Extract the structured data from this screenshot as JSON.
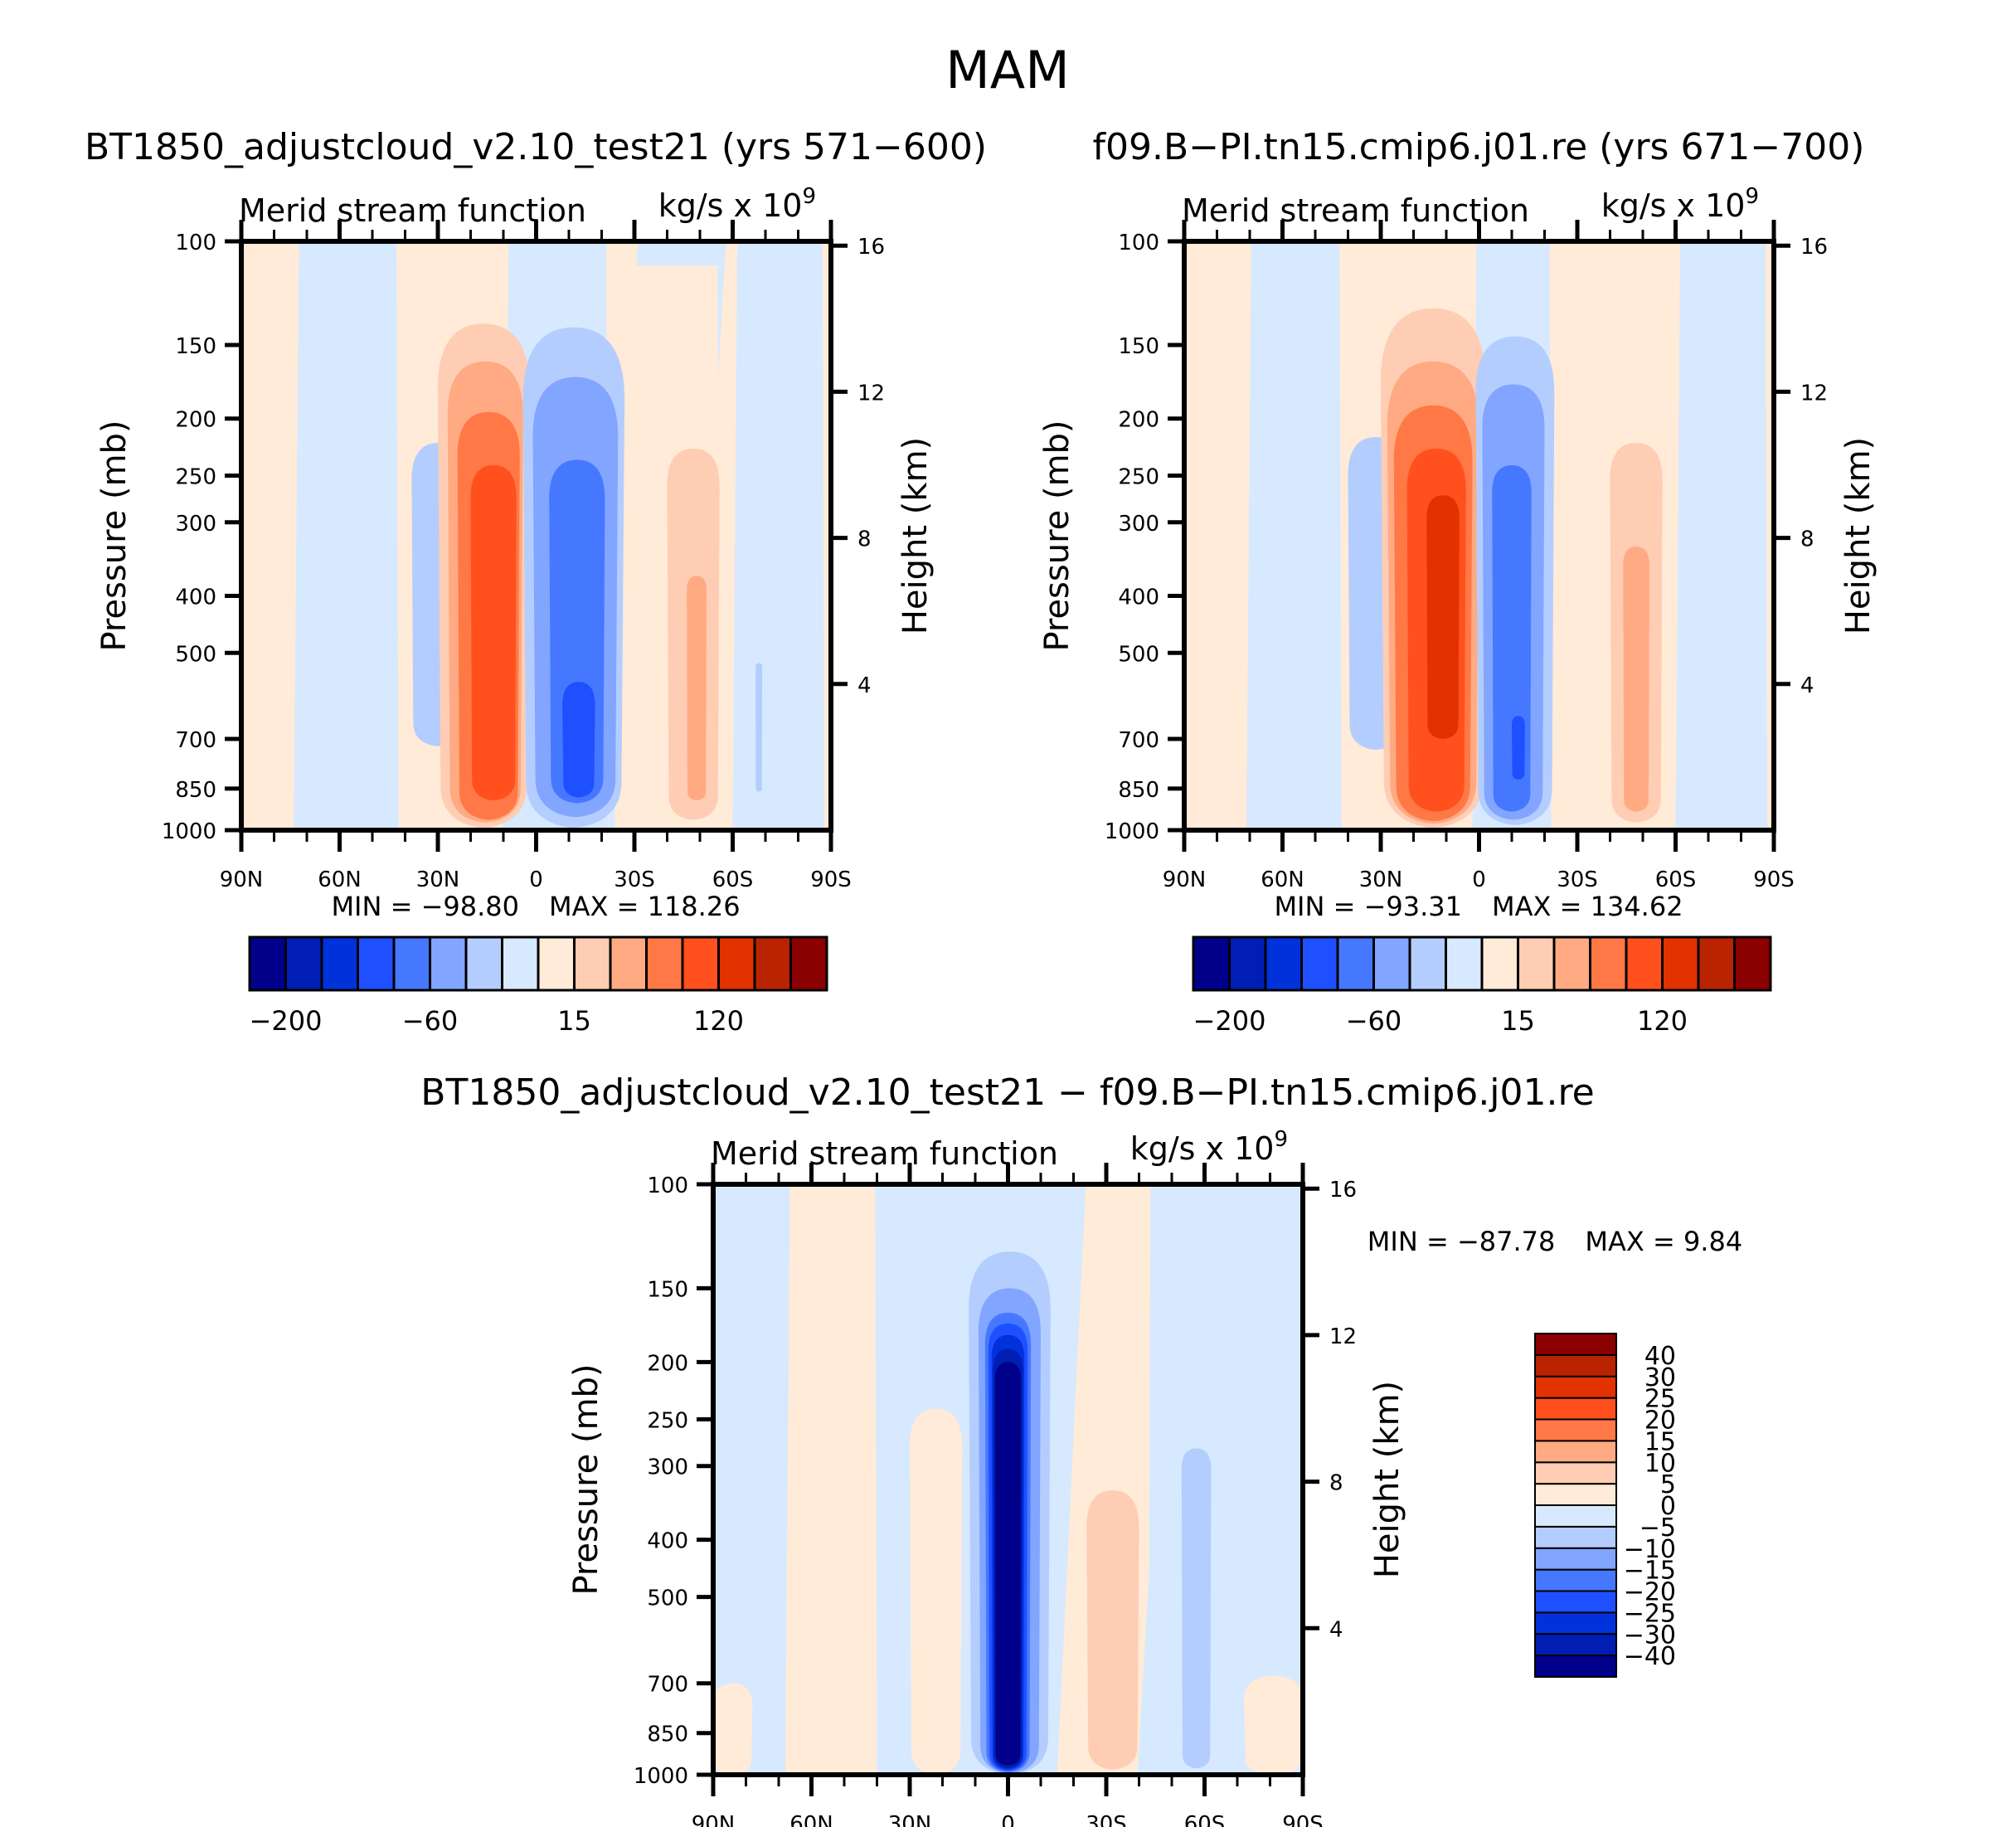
{
  "figure": {
    "title": "MAM"
  },
  "palette": [
    "#00008b",
    "#001eb4",
    "#0032dc",
    "#1e50ff",
    "#4678ff",
    "#82a5ff",
    "#b4cdff",
    "#d7e9ff",
    "#ffebd7",
    "#ffcdb4",
    "#ffaa82",
    "#ff7846",
    "#ff501e",
    "#e13200",
    "#b92300",
    "#8b0000"
  ],
  "chart_data": [
    {
      "id": "case",
      "type": "heatmap",
      "title": "BT1850_adjustcloud_v2.10_test21 (yrs 571−600)",
      "left_string": "Merid stream function",
      "right_string": "kg/s x 10",
      "right_string_exp": "9",
      "xlabel": "",
      "ylabel": "Pressure (mb)",
      "ylabel_right": "Height (km)",
      "x_ticks": [
        {
          "v": 90,
          "label": "90N"
        },
        {
          "v": 60,
          "label": "60N"
        },
        {
          "v": 30,
          "label": "30N"
        },
        {
          "v": 0,
          "label": "0"
        },
        {
          "v": -30,
          "label": "30S"
        },
        {
          "v": -60,
          "label": "60S"
        },
        {
          "v": -90,
          "label": "90S"
        }
      ],
      "xlim": [
        90,
        -90
      ],
      "y_ticks": [
        100,
        150,
        200,
        250,
        300,
        400,
        500,
        700,
        850,
        1000
      ],
      "ylim": [
        100,
        1000
      ],
      "yscale": "log",
      "y_right_ticks": [
        16,
        12,
        8,
        4
      ],
      "min_label": "MIN = −98.80",
      "max_label": "MAX = 118.26",
      "min": -98.8,
      "max": 118.26,
      "colorbar": {
        "orientation": "horizontal",
        "labels": [
          {
            "boundary": 1,
            "text": "−200"
          },
          {
            "boundary": 5,
            "text": "−60"
          },
          {
            "boundary": 9,
            "text": "15"
          },
          {
            "boundary": 13,
            "text": "120"
          }
        ]
      },
      "background_level": 8,
      "regions": [
        {
          "level": 7,
          "lat": [
            74,
            42
          ],
          "p": [
            100,
            990
          ],
          "shape": "column"
        },
        {
          "level": 7,
          "lat": [
            10,
            -22
          ],
          "p": [
            100,
            1000
          ],
          "shape": "column"
        },
        {
          "level": 7,
          "lat": [
            -60,
            -88
          ],
          "p": [
            100,
            990
          ],
          "shape": "column"
        },
        {
          "level": 7,
          "lat": [
            -22,
            -58
          ],
          "p": [
            100,
            1000
          ],
          "shape": "column_skew"
        },
        {
          "level": 8,
          "lat": [
            -24,
            -56
          ],
          "p": [
            110,
            1000
          ],
          "shape": "column"
        },
        {
          "level": 6,
          "lat": [
            38,
            22
          ],
          "p": [
            220,
            720
          ],
          "shape": "blob"
        },
        {
          "level": 9,
          "lat": [
            30,
            2
          ],
          "p": [
            138,
            990
          ],
          "shape": "blob"
        },
        {
          "level": 10,
          "lat": [
            27,
            4
          ],
          "p": [
            160,
            970
          ],
          "shape": "blob"
        },
        {
          "level": 11,
          "lat": [
            24,
            5
          ],
          "p": [
            195,
            960
          ],
          "shape": "blob"
        },
        {
          "level": 12,
          "lat": [
            20,
            6
          ],
          "p": [
            240,
            890
          ],
          "shape": "blob"
        },
        {
          "level": 6,
          "lat": [
            4,
            -27
          ],
          "p": [
            140,
            990
          ],
          "shape": "blob"
        },
        {
          "level": 5,
          "lat": [
            1,
            -25
          ],
          "p": [
            170,
            950
          ],
          "shape": "blob"
        },
        {
          "level": 4,
          "lat": [
            -4,
            -21
          ],
          "p": [
            235,
            900
          ],
          "shape": "blob"
        },
        {
          "level": 3,
          "lat": [
            -8,
            -18
          ],
          "p": [
            560,
            880
          ],
          "shape": "blob"
        },
        {
          "level": 9,
          "lat": [
            -40,
            -56
          ],
          "p": [
            225,
            960
          ],
          "shape": "blob"
        },
        {
          "level": 10,
          "lat": [
            -46,
            -52
          ],
          "p": [
            370,
            890
          ],
          "shape": "blob"
        },
        {
          "level": 6,
          "lat": [
            -67,
            -69
          ],
          "p": [
            520,
            860
          ],
          "shape": "blob"
        }
      ]
    },
    {
      "id": "control",
      "type": "heatmap",
      "title": "f09.B−PI.tn15.cmip6.j01.re (yrs 671−700)",
      "left_string": "Merid stream function",
      "right_string": "kg/s x 10",
      "right_string_exp": "9",
      "xlabel": "",
      "ylabel": "Pressure (mb)",
      "ylabel_right": "Height (km)",
      "x_ticks": [
        {
          "v": 90,
          "label": "90N"
        },
        {
          "v": 60,
          "label": "60N"
        },
        {
          "v": 30,
          "label": "30N"
        },
        {
          "v": 0,
          "label": "0"
        },
        {
          "v": -30,
          "label": "30S"
        },
        {
          "v": -60,
          "label": "60S"
        },
        {
          "v": -90,
          "label": "90S"
        }
      ],
      "xlim": [
        90,
        -90
      ],
      "y_ticks": [
        100,
        150,
        200,
        250,
        300,
        400,
        500,
        700,
        850,
        1000
      ],
      "ylim": [
        100,
        1000
      ],
      "yscale": "log",
      "y_right_ticks": [
        16,
        12,
        8,
        4
      ],
      "min_label": "MIN = −93.31",
      "max_label": "MAX = 134.62",
      "min": -93.31,
      "max": 134.62,
      "colorbar": {
        "orientation": "horizontal",
        "labels": [
          {
            "boundary": 1,
            "text": "−200"
          },
          {
            "boundary": 5,
            "text": "−60"
          },
          {
            "boundary": 9,
            "text": "15"
          },
          {
            "boundary": 13,
            "text": "120"
          }
        ]
      },
      "background_level": 8,
      "regions": [
        {
          "level": 7,
          "lat": [
            71,
            42
          ],
          "p": [
            100,
            990
          ],
          "shape": "column"
        },
        {
          "level": 7,
          "lat": [
            2,
            -22
          ],
          "p": [
            100,
            1000
          ],
          "shape": "column"
        },
        {
          "level": 7,
          "lat": [
            -60,
            -88
          ],
          "p": [
            100,
            990
          ],
          "shape": "column"
        },
        {
          "level": 8,
          "lat": [
            -24,
            -56
          ],
          "p": [
            110,
            1000
          ],
          "shape": "column"
        },
        {
          "level": 6,
          "lat": [
            40,
            23
          ],
          "p": [
            215,
            730
          ],
          "shape": "blob"
        },
        {
          "level": 9,
          "lat": [
            30,
            -2
          ],
          "p": [
            130,
            990
          ],
          "shape": "blob"
        },
        {
          "level": 10,
          "lat": [
            28,
            0
          ],
          "p": [
            160,
            975
          ],
          "shape": "blob"
        },
        {
          "level": 11,
          "lat": [
            26,
            2
          ],
          "p": [
            190,
            965
          ],
          "shape": "blob"
        },
        {
          "level": 12,
          "lat": [
            22,
            4
          ],
          "p": [
            225,
            930
          ],
          "shape": "blob"
        },
        {
          "level": 13,
          "lat": [
            16,
            6
          ],
          "p": [
            270,
            700
          ],
          "shape": "blob"
        },
        {
          "level": 6,
          "lat": [
            1,
            -23
          ],
          "p": [
            145,
            980
          ],
          "shape": "blob"
        },
        {
          "level": 5,
          "lat": [
            -1,
            -20
          ],
          "p": [
            175,
            960
          ],
          "shape": "blob"
        },
        {
          "level": 4,
          "lat": [
            -4,
            -16
          ],
          "p": [
            240,
            930
          ],
          "shape": "blob"
        },
        {
          "level": 3,
          "lat": [
            -10,
            -14
          ],
          "p": [
            640,
            820
          ],
          "shape": "blob"
        },
        {
          "level": 9,
          "lat": [
            -40,
            -56
          ],
          "p": [
            220,
            970
          ],
          "shape": "blob"
        },
        {
          "level": 10,
          "lat": [
            -44,
            -52
          ],
          "p": [
            330,
            930
          ],
          "shape": "blob"
        }
      ]
    },
    {
      "id": "difference",
      "type": "heatmap",
      "title": "BT1850_adjustcloud_v2.10_test21 − f09.B−PI.tn15.cmip6.j01.re",
      "left_string": "Merid stream function",
      "right_string": "kg/s x 10",
      "right_string_exp": "9",
      "xlabel": "",
      "ylabel": "Pressure (mb)",
      "ylabel_right": "Height (km)",
      "x_ticks": [
        {
          "v": 90,
          "label": "90N"
        },
        {
          "v": 60,
          "label": "60N"
        },
        {
          "v": 30,
          "label": "30N"
        },
        {
          "v": 0,
          "label": "0"
        },
        {
          "v": -30,
          "label": "30S"
        },
        {
          "v": -60,
          "label": "60S"
        },
        {
          "v": -90,
          "label": "90S"
        }
      ],
      "xlim": [
        90,
        -90
      ],
      "y_ticks": [
        100,
        150,
        200,
        250,
        300,
        400,
        500,
        700,
        850,
        1000
      ],
      "ylim": [
        100,
        1000
      ],
      "yscale": "log",
      "y_right_ticks": [
        16,
        12,
        8,
        4
      ],
      "min_label": "MIN = −87.78",
      "max_label": "MAX =    9.84",
      "min": -87.78,
      "max": 9.84,
      "colorbar": {
        "orientation": "vertical",
        "levels": [
          -40,
          -30,
          -25,
          -20,
          -15,
          -10,
          -5,
          0,
          5,
          10,
          15,
          20,
          25,
          30,
          40
        ],
        "labels": [
          "−40",
          "−30",
          "−25",
          "−20",
          "−15",
          "−10",
          "−5",
          "0",
          "5",
          "10",
          "15",
          "20",
          "25",
          "30",
          "40"
        ]
      },
      "background_level": 7,
      "regions": [
        {
          "level": 8,
          "lat": [
            68,
            40
          ],
          "p": [
            100,
            1000
          ],
          "shape": "column"
        },
        {
          "level": 8,
          "lat": [
            90,
            78
          ],
          "p": [
            700,
            1000
          ],
          "shape": "blob"
        },
        {
          "level": 8,
          "lat": [
            30,
            14
          ],
          "p": [
            240,
            1000
          ],
          "shape": "blob"
        },
        {
          "level": 8,
          "lat": [
            -15,
            -50
          ],
          "p": [
            100,
            1000
          ],
          "shape": "column_skew"
        },
        {
          "level": 8,
          "lat": [
            -72,
            -90
          ],
          "p": [
            680,
            1000
          ],
          "shape": "blob"
        },
        {
          "level": 7,
          "lat": [
            -43,
            -52
          ],
          "p": [
            100,
            1000
          ],
          "shape": "column"
        },
        {
          "level": 9,
          "lat": [
            -24,
            -40
          ],
          "p": [
            330,
            980
          ],
          "shape": "blob"
        },
        {
          "level": 6,
          "lat": [
            -53,
            -62
          ],
          "p": [
            280,
            975
          ],
          "shape": "blob"
        },
        {
          "level": 6,
          "lat": [
            12,
            -13
          ],
          "p": [
            130,
            1000
          ],
          "shape": "blob"
        },
        {
          "level": 5,
          "lat": [
            9,
            -10
          ],
          "p": [
            150,
            995
          ],
          "shape": "blob"
        },
        {
          "level": 4,
          "lat": [
            7,
            -7
          ],
          "p": [
            165,
            990
          ],
          "shape": "blob"
        },
        {
          "level": 3,
          "lat": [
            6,
            -6
          ],
          "p": [
            172,
            985
          ],
          "shape": "blob"
        },
        {
          "level": 2,
          "lat": [
            5,
            -5
          ],
          "p": [
            180,
            980
          ],
          "shape": "blob"
        },
        {
          "level": 1,
          "lat": [
            4.5,
            -4.5
          ],
          "p": [
            190,
            975
          ],
          "shape": "blob"
        },
        {
          "level": 0,
          "lat": [
            4,
            -4
          ],
          "p": [
            200,
            965
          ],
          "shape": "blob"
        }
      ]
    }
  ]
}
